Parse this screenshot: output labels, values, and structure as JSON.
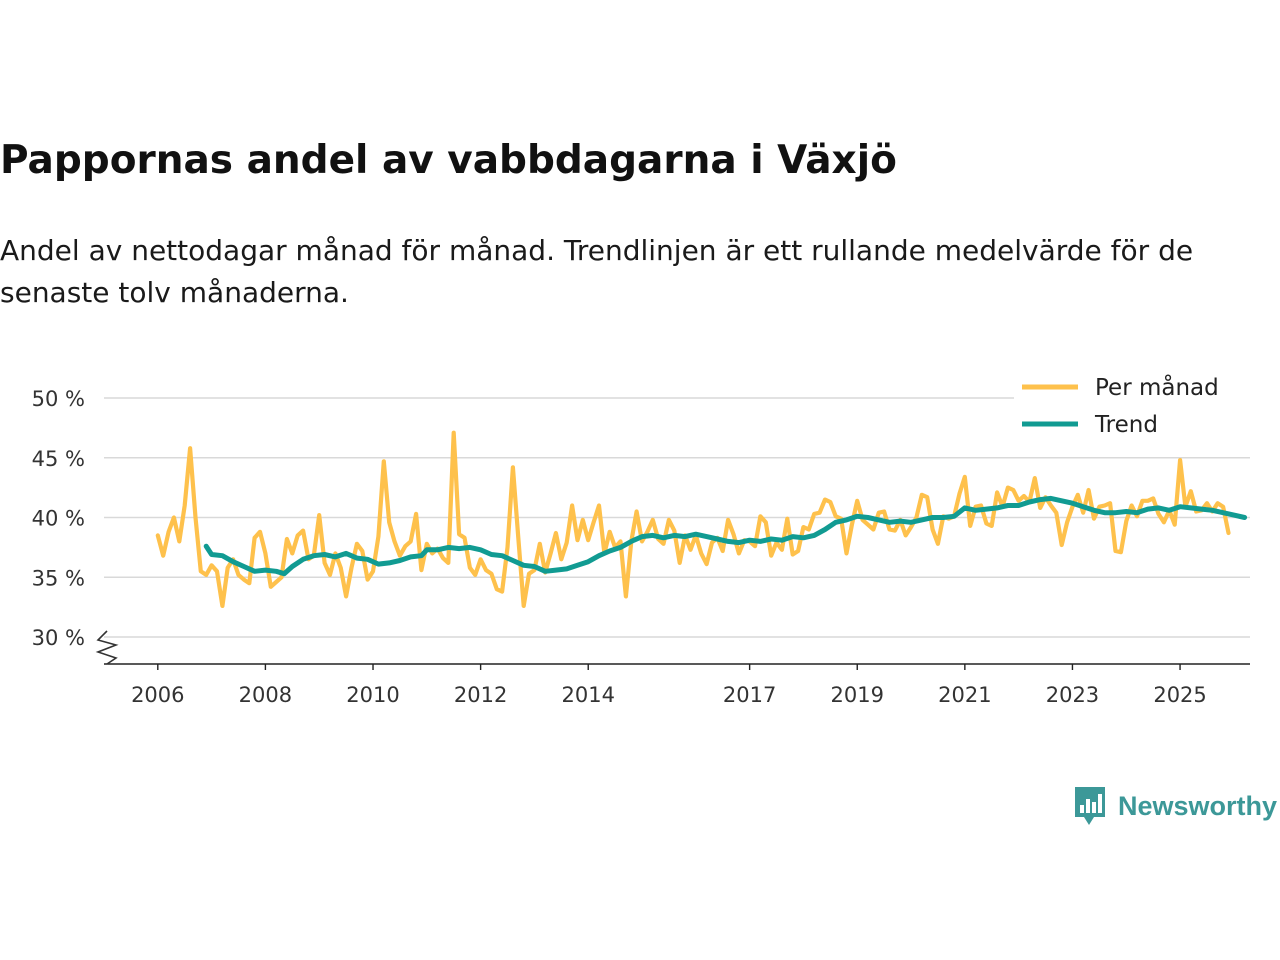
{
  "colors": {
    "monthly": "#fec14c",
    "trend": "#119b92",
    "grid": "#d9d9d9",
    "axis": "#222222",
    "brand": "#3c9898"
  },
  "chart_data": {
    "type": "line",
    "title": "Pappornas andel av vabbdagarna i Växjö",
    "subtitle": "Andel av nettodagar månad för månad. Trendlinjen är ett rullande medelvärde för de senaste tolv månaderna.",
    "xlabel": "",
    "ylabel": "",
    "ylim": [
      30,
      50
    ],
    "y_ticks": [
      30,
      35,
      40,
      45,
      50
    ],
    "y_tick_labels": [
      "30 %",
      "35 %",
      "40 %",
      "45 %",
      "50 %"
    ],
    "x_ticks": [
      2006,
      2008,
      2010,
      2012,
      2014,
      2017,
      2019,
      2021,
      2023,
      2025
    ],
    "x_tick_labels": [
      "2006",
      "2008",
      "2010",
      "2012",
      "2014",
      "2017",
      "2019",
      "2021",
      "2023",
      "2025"
    ],
    "xlim": [
      2005.0,
      2026.3
    ],
    "axis_break": true,
    "grid": true,
    "legend_position": "top-right",
    "series": [
      {
        "name": "Per månad",
        "points": [
          [
            2006.0,
            38.5
          ],
          [
            2006.1,
            36.8
          ],
          [
            2006.2,
            38.8
          ],
          [
            2006.3,
            40.0
          ],
          [
            2006.4,
            38.0
          ],
          [
            2006.5,
            41.0
          ],
          [
            2006.6,
            45.8
          ],
          [
            2006.7,
            40.0
          ],
          [
            2006.8,
            35.5
          ],
          [
            2006.9,
            35.2
          ],
          [
            2007.0,
            36.0
          ],
          [
            2007.1,
            35.5
          ],
          [
            2007.2,
            32.6
          ],
          [
            2007.3,
            35.8
          ],
          [
            2007.4,
            36.5
          ],
          [
            2007.5,
            35.2
          ],
          [
            2007.6,
            34.8
          ],
          [
            2007.7,
            34.5
          ],
          [
            2007.8,
            38.3
          ],
          [
            2007.9,
            38.8
          ],
          [
            2008.0,
            37.0
          ],
          [
            2008.1,
            34.2
          ],
          [
            2008.2,
            34.6
          ],
          [
            2008.3,
            35.0
          ],
          [
            2008.4,
            38.2
          ],
          [
            2008.5,
            37.0
          ],
          [
            2008.6,
            38.5
          ],
          [
            2008.7,
            38.9
          ],
          [
            2008.8,
            36.5
          ],
          [
            2008.9,
            36.8
          ],
          [
            2009.0,
            40.2
          ],
          [
            2009.1,
            36.2
          ],
          [
            2009.2,
            35.2
          ],
          [
            2009.3,
            37.0
          ],
          [
            2009.4,
            35.8
          ],
          [
            2009.5,
            33.4
          ],
          [
            2009.6,
            35.8
          ],
          [
            2009.7,
            37.8
          ],
          [
            2009.8,
            37.2
          ],
          [
            2009.9,
            34.8
          ],
          [
            2010.0,
            35.5
          ],
          [
            2010.1,
            38.4
          ],
          [
            2010.2,
            44.7
          ],
          [
            2010.3,
            39.6
          ],
          [
            2010.4,
            38.0
          ],
          [
            2010.5,
            36.8
          ],
          [
            2010.6,
            37.6
          ],
          [
            2010.7,
            38.0
          ],
          [
            2010.8,
            40.3
          ],
          [
            2010.9,
            35.6
          ],
          [
            2011.0,
            37.8
          ],
          [
            2011.1,
            37.0
          ],
          [
            2011.2,
            37.4
          ],
          [
            2011.3,
            36.6
          ],
          [
            2011.4,
            36.2
          ],
          [
            2011.5,
            47.1
          ],
          [
            2011.6,
            38.6
          ],
          [
            2011.7,
            38.3
          ],
          [
            2011.8,
            35.8
          ],
          [
            2011.9,
            35.2
          ],
          [
            2012.0,
            36.5
          ],
          [
            2012.1,
            35.6
          ],
          [
            2012.2,
            35.3
          ],
          [
            2012.3,
            34.0
          ],
          [
            2012.4,
            33.8
          ],
          [
            2012.5,
            37.5
          ],
          [
            2012.6,
            44.2
          ],
          [
            2012.7,
            38.3
          ],
          [
            2012.8,
            32.6
          ],
          [
            2012.9,
            35.3
          ],
          [
            2013.0,
            35.6
          ],
          [
            2013.1,
            37.8
          ],
          [
            2013.2,
            35.4
          ],
          [
            2013.3,
            37.0
          ],
          [
            2013.4,
            38.7
          ],
          [
            2013.5,
            36.5
          ],
          [
            2013.6,
            37.9
          ],
          [
            2013.7,
            41.0
          ],
          [
            2013.8,
            38.1
          ],
          [
            2013.9,
            39.8
          ],
          [
            2014.0,
            38.1
          ],
          [
            2014.1,
            39.6
          ],
          [
            2014.2,
            41.0
          ],
          [
            2014.3,
            37.0
          ],
          [
            2014.4,
            38.8
          ],
          [
            2014.5,
            37.5
          ],
          [
            2014.6,
            38.0
          ],
          [
            2014.7,
            33.4
          ],
          [
            2014.8,
            38.0
          ],
          [
            2014.9,
            40.5
          ],
          [
            2015.0,
            38.0
          ],
          [
            2015.1,
            38.8
          ],
          [
            2015.2,
            39.8
          ],
          [
            2015.3,
            38.2
          ],
          [
            2015.4,
            37.8
          ],
          [
            2015.5,
            39.8
          ],
          [
            2015.6,
            38.9
          ],
          [
            2015.7,
            36.2
          ],
          [
            2015.8,
            38.5
          ],
          [
            2015.9,
            37.3
          ],
          [
            2016.0,
            38.5
          ],
          [
            2016.1,
            37.0
          ],
          [
            2016.2,
            36.1
          ],
          [
            2016.3,
            37.9
          ],
          [
            2016.4,
            38.3
          ],
          [
            2016.5,
            37.2
          ],
          [
            2016.6,
            39.8
          ],
          [
            2016.7,
            38.6
          ],
          [
            2016.8,
            37.0
          ],
          [
            2016.9,
            38.1
          ],
          [
            2017.0,
            38.0
          ],
          [
            2017.1,
            37.6
          ],
          [
            2017.2,
            40.1
          ],
          [
            2017.3,
            39.6
          ],
          [
            2017.4,
            36.8
          ],
          [
            2017.5,
            37.9
          ],
          [
            2017.6,
            37.3
          ],
          [
            2017.7,
            39.9
          ],
          [
            2017.8,
            36.9
          ],
          [
            2017.9,
            37.2
          ],
          [
            2018.0,
            39.2
          ],
          [
            2018.1,
            39.0
          ],
          [
            2018.2,
            40.3
          ],
          [
            2018.3,
            40.4
          ],
          [
            2018.4,
            41.5
          ],
          [
            2018.5,
            41.3
          ],
          [
            2018.6,
            40.1
          ],
          [
            2018.7,
            39.9
          ],
          [
            2018.8,
            37.0
          ],
          [
            2018.9,
            39.4
          ],
          [
            2019.0,
            41.4
          ],
          [
            2019.1,
            39.8
          ],
          [
            2019.2,
            39.4
          ],
          [
            2019.3,
            39.0
          ],
          [
            2019.4,
            40.4
          ],
          [
            2019.5,
            40.5
          ],
          [
            2019.6,
            39.0
          ],
          [
            2019.7,
            38.9
          ],
          [
            2019.8,
            39.8
          ],
          [
            2019.9,
            38.5
          ],
          [
            2020.0,
            39.2
          ],
          [
            2020.1,
            40.0
          ],
          [
            2020.2,
            41.9
          ],
          [
            2020.3,
            41.7
          ],
          [
            2020.4,
            39.0
          ],
          [
            2020.5,
            37.8
          ],
          [
            2020.6,
            40.1
          ],
          [
            2020.7,
            39.9
          ],
          [
            2020.8,
            40.1
          ],
          [
            2020.9,
            42.0
          ],
          [
            2021.0,
            43.4
          ],
          [
            2021.1,
            39.3
          ],
          [
            2021.2,
            40.9
          ],
          [
            2021.3,
            41.0
          ],
          [
            2021.4,
            39.5
          ],
          [
            2021.5,
            39.3
          ],
          [
            2021.6,
            42.1
          ],
          [
            2021.7,
            40.9
          ],
          [
            2021.8,
            42.5
          ],
          [
            2021.9,
            42.3
          ],
          [
            2022.0,
            41.4
          ],
          [
            2022.1,
            41.8
          ],
          [
            2022.2,
            41.3
          ],
          [
            2022.3,
            43.3
          ],
          [
            2022.4,
            40.8
          ],
          [
            2022.5,
            41.7
          ],
          [
            2022.6,
            41.0
          ],
          [
            2022.7,
            40.4
          ],
          [
            2022.8,
            37.7
          ],
          [
            2022.9,
            39.6
          ],
          [
            2023.0,
            40.9
          ],
          [
            2023.1,
            41.9
          ],
          [
            2023.2,
            40.4
          ],
          [
            2023.3,
            42.3
          ],
          [
            2023.4,
            39.9
          ],
          [
            2023.5,
            40.9
          ],
          [
            2023.6,
            41.0
          ],
          [
            2023.7,
            41.2
          ],
          [
            2023.8,
            37.2
          ],
          [
            2023.9,
            37.1
          ],
          [
            2024.0,
            39.7
          ],
          [
            2024.1,
            41.0
          ],
          [
            2024.2,
            40.1
          ],
          [
            2024.3,
            41.4
          ],
          [
            2024.4,
            41.4
          ],
          [
            2024.5,
            41.6
          ],
          [
            2024.6,
            40.3
          ],
          [
            2024.7,
            39.6
          ],
          [
            2024.8,
            40.6
          ],
          [
            2024.9,
            39.4
          ],
          [
            2025.0,
            44.8
          ],
          [
            2025.1,
            40.9
          ],
          [
            2025.2,
            42.2
          ],
          [
            2025.3,
            40.5
          ],
          [
            2025.4,
            40.6
          ],
          [
            2025.5,
            41.2
          ],
          [
            2025.6,
            40.5
          ],
          [
            2025.7,
            41.2
          ],
          [
            2025.8,
            40.9
          ],
          [
            2025.9,
            38.7
          ]
        ]
      },
      {
        "name": "Trend",
        "points": [
          [
            2006.9,
            37.6
          ],
          [
            2007.0,
            36.9
          ],
          [
            2007.2,
            36.8
          ],
          [
            2007.4,
            36.3
          ],
          [
            2007.6,
            35.9
          ],
          [
            2007.8,
            35.5
          ],
          [
            2008.0,
            35.6
          ],
          [
            2008.2,
            35.5
          ],
          [
            2008.35,
            35.3
          ],
          [
            2008.5,
            35.9
          ],
          [
            2008.7,
            36.5
          ],
          [
            2008.9,
            36.8
          ],
          [
            2009.1,
            36.9
          ],
          [
            2009.3,
            36.7
          ],
          [
            2009.5,
            37.0
          ],
          [
            2009.7,
            36.6
          ],
          [
            2009.9,
            36.5
          ],
          [
            2010.1,
            36.1
          ],
          [
            2010.3,
            36.2
          ],
          [
            2010.5,
            36.4
          ],
          [
            2010.7,
            36.7
          ],
          [
            2010.9,
            36.8
          ],
          [
            2011.0,
            37.3
          ],
          [
            2011.2,
            37.3
          ],
          [
            2011.4,
            37.5
          ],
          [
            2011.6,
            37.4
          ],
          [
            2011.8,
            37.5
          ],
          [
            2012.0,
            37.3
          ],
          [
            2012.2,
            36.9
          ],
          [
            2012.4,
            36.8
          ],
          [
            2012.6,
            36.4
          ],
          [
            2012.8,
            36.0
          ],
          [
            2013.0,
            35.9
          ],
          [
            2013.2,
            35.5
          ],
          [
            2013.4,
            35.6
          ],
          [
            2013.6,
            35.7
          ],
          [
            2013.8,
            36.0
          ],
          [
            2014.0,
            36.3
          ],
          [
            2014.2,
            36.8
          ],
          [
            2014.4,
            37.2
          ],
          [
            2014.6,
            37.5
          ],
          [
            2014.8,
            38.0
          ],
          [
            2015.0,
            38.4
          ],
          [
            2015.2,
            38.5
          ],
          [
            2015.4,
            38.3
          ],
          [
            2015.6,
            38.5
          ],
          [
            2015.8,
            38.4
          ],
          [
            2016.0,
            38.6
          ],
          [
            2016.2,
            38.4
          ],
          [
            2016.4,
            38.2
          ],
          [
            2016.6,
            38.0
          ],
          [
            2016.8,
            37.9
          ],
          [
            2017.0,
            38.1
          ],
          [
            2017.2,
            38.0
          ],
          [
            2017.4,
            38.2
          ],
          [
            2017.6,
            38.1
          ],
          [
            2017.8,
            38.4
          ],
          [
            2018.0,
            38.3
          ],
          [
            2018.2,
            38.5
          ],
          [
            2018.4,
            39.0
          ],
          [
            2018.6,
            39.6
          ],
          [
            2018.8,
            39.8
          ],
          [
            2019.0,
            40.1
          ],
          [
            2019.2,
            40.0
          ],
          [
            2019.4,
            39.8
          ],
          [
            2019.6,
            39.6
          ],
          [
            2019.8,
            39.7
          ],
          [
            2020.0,
            39.6
          ],
          [
            2020.2,
            39.8
          ],
          [
            2020.4,
            40.0
          ],
          [
            2020.6,
            40.0
          ],
          [
            2020.8,
            40.1
          ],
          [
            2021.0,
            40.8
          ],
          [
            2021.2,
            40.6
          ],
          [
            2021.4,
            40.7
          ],
          [
            2021.6,
            40.8
          ],
          [
            2021.8,
            41.0
          ],
          [
            2022.0,
            41.0
          ],
          [
            2022.2,
            41.3
          ],
          [
            2022.4,
            41.5
          ],
          [
            2022.6,
            41.6
          ],
          [
            2022.8,
            41.4
          ],
          [
            2023.0,
            41.2
          ],
          [
            2023.2,
            40.9
          ],
          [
            2023.4,
            40.6
          ],
          [
            2023.6,
            40.4
          ],
          [
            2023.8,
            40.4
          ],
          [
            2024.0,
            40.5
          ],
          [
            2024.2,
            40.4
          ],
          [
            2024.4,
            40.7
          ],
          [
            2024.6,
            40.8
          ],
          [
            2024.8,
            40.6
          ],
          [
            2025.0,
            40.9
          ],
          [
            2025.2,
            40.8
          ],
          [
            2025.4,
            40.7
          ],
          [
            2025.6,
            40.6
          ],
          [
            2025.8,
            40.4
          ],
          [
            2026.0,
            40.2
          ],
          [
            2026.2,
            40.0
          ]
        ]
      }
    ]
  },
  "brand": {
    "name": "Newsworthy",
    "logo_icon": "newsworthy-logo-icon"
  }
}
